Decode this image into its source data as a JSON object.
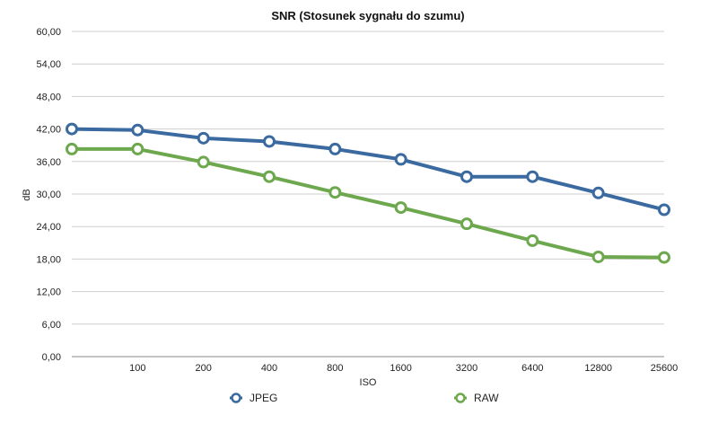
{
  "chart_data": {
    "type": "line",
    "title": "SNR (Stosunek sygnału do szumu)",
    "xlabel": "ISO",
    "ylabel": "dB",
    "categories": [
      "",
      "100",
      "200",
      "400",
      "800",
      "1600",
      "3200",
      "6400",
      "12800",
      "25600"
    ],
    "y_ticks": [
      "0,00",
      "6,00",
      "12,00",
      "18,00",
      "24,00",
      "30,00",
      "36,00",
      "42,00",
      "48,00",
      "54,00",
      "60,00"
    ],
    "ylim": [
      0,
      60
    ],
    "grid": true,
    "legend_position": "bottom",
    "series": [
      {
        "name": "JPEG",
        "color": "#3b6aa0",
        "values": [
          42.0,
          41.8,
          40.3,
          39.7,
          38.3,
          36.4,
          33.2,
          33.2,
          30.2,
          27.1
        ]
      },
      {
        "name": "RAW",
        "color": "#6ea84e",
        "values": [
          38.3,
          38.3,
          35.9,
          33.2,
          30.3,
          27.5,
          24.5,
          21.4,
          18.4,
          18.3
        ]
      }
    ]
  }
}
